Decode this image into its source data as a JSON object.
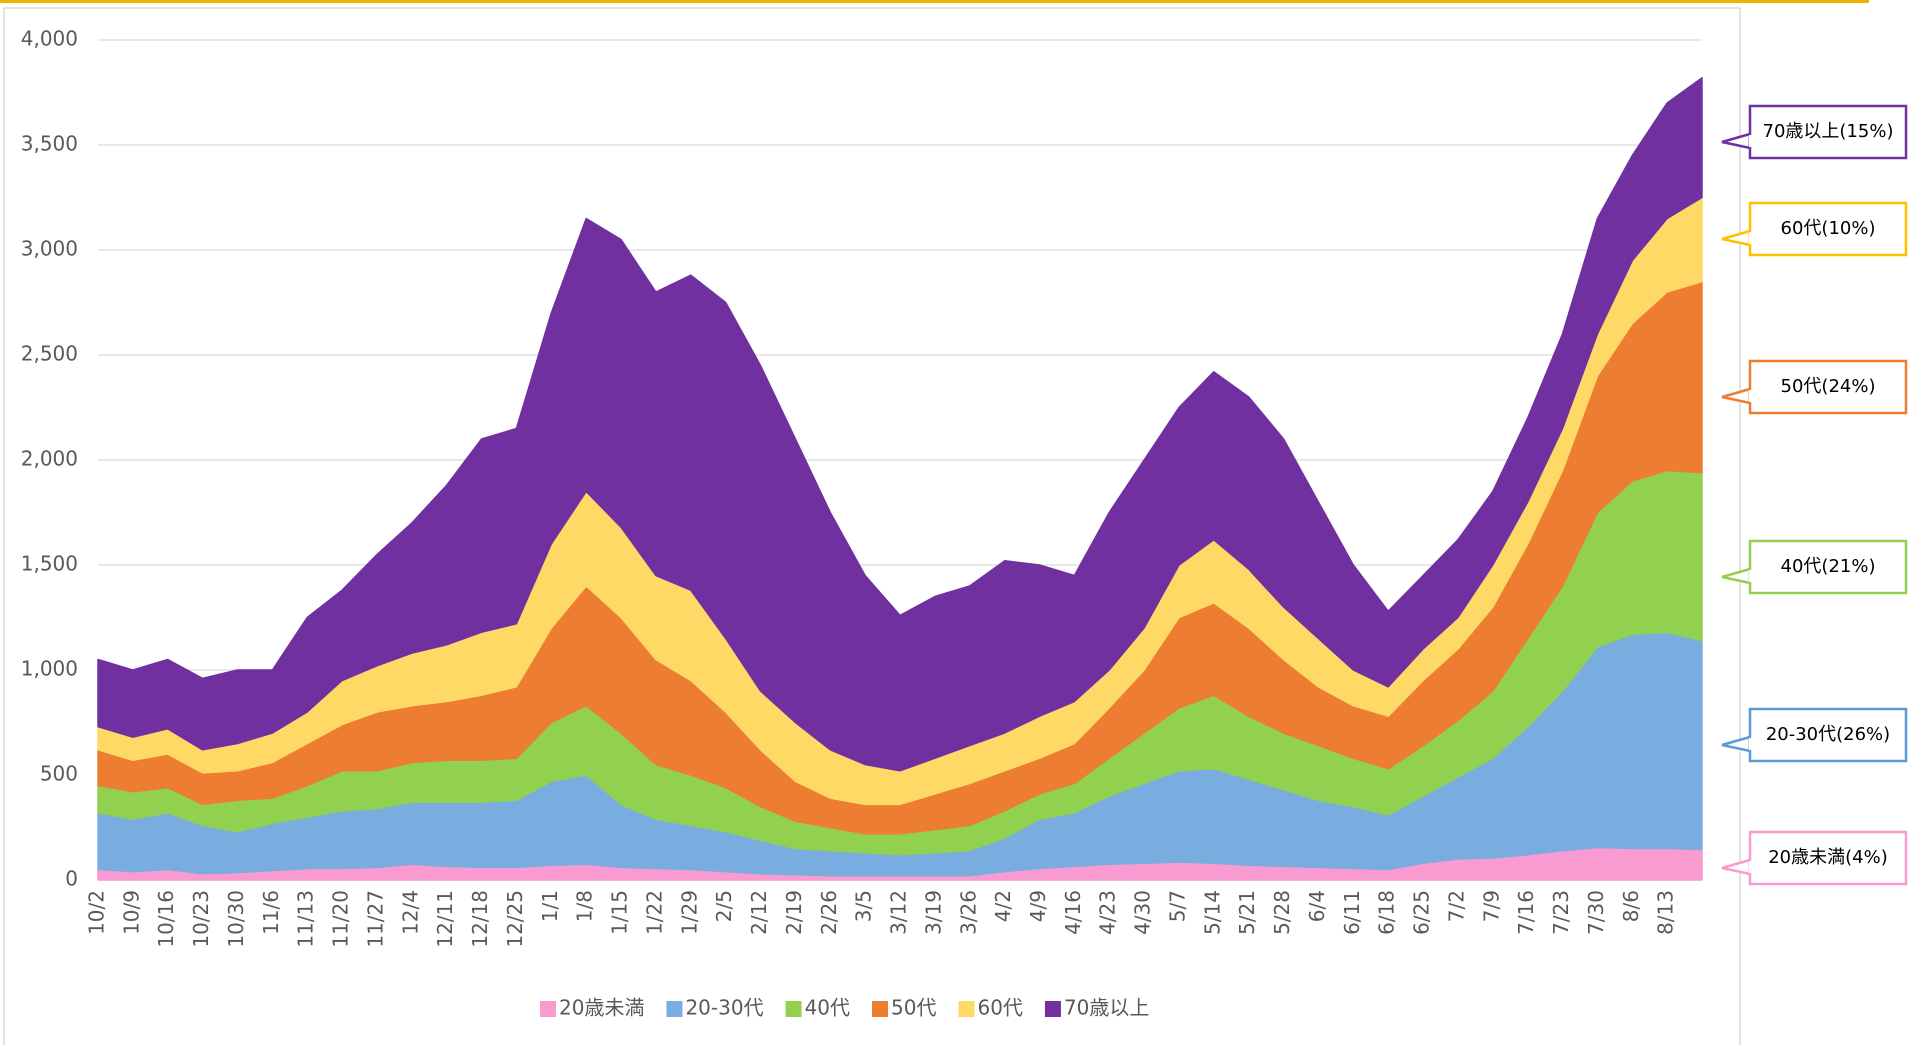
{
  "chart_data": {
    "type": "stacked_area",
    "categories": [
      "10/2",
      "10/9",
      "10/16",
      "10/23",
      "10/30",
      "11/6",
      "11/13",
      "11/20",
      "11/27",
      "12/4",
      "12/11",
      "12/18",
      "12/25",
      "1/1",
      "1/8",
      "1/15",
      "1/22",
      "1/29",
      "2/5",
      "2/12",
      "2/19",
      "2/26",
      "3/5",
      "3/12",
      "3/19",
      "3/26",
      "4/2",
      "4/9",
      "4/16",
      "4/23",
      "4/30",
      "5/7",
      "5/14",
      "5/21",
      "5/28",
      "6/4",
      "6/11",
      "6/18",
      "6/25",
      "7/2",
      "7/9",
      "7/16",
      "7/23",
      "7/30",
      "8/6",
      "8/13",
      null
    ],
    "series": [
      {
        "name": "20歳未満",
        "color": "#f99bd0",
        "values": [
          50,
          40,
          50,
          30,
          35,
          45,
          55,
          55,
          60,
          75,
          65,
          60,
          60,
          70,
          75,
          60,
          55,
          50,
          40,
          30,
          25,
          20,
          20,
          20,
          20,
          20,
          40,
          55,
          65,
          75,
          80,
          85,
          80,
          70,
          65,
          60,
          55,
          50,
          80,
          100,
          105,
          120,
          140,
          155,
          150,
          150,
          145
        ]
      },
      {
        "name": "20-30代",
        "color": "#7aaddf",
        "values": [
          270,
          250,
          270,
          230,
          195,
          225,
          245,
          275,
          280,
          295,
          305,
          310,
          320,
          400,
          425,
          300,
          235,
          210,
          190,
          160,
          125,
          120,
          110,
          100,
          110,
          120,
          160,
          235,
          255,
          325,
          380,
          435,
          450,
          410,
          365,
          320,
          295,
          260,
          320,
          390,
          475,
          610,
          760,
          955,
          1020,
          1030,
          995
        ]
      },
      {
        "name": "40代",
        "color": "#92d050",
        "values": [
          130,
          130,
          120,
          100,
          150,
          120,
          150,
          190,
          180,
          190,
          200,
          200,
          200,
          280,
          330,
          340,
          260,
          240,
          210,
          160,
          130,
          110,
          90,
          100,
          110,
          120,
          130,
          120,
          140,
          180,
          240,
          300,
          350,
          300,
          270,
          260,
          230,
          220,
          240,
          270,
          320,
          420,
          500,
          640,
          730,
          770,
          800
        ]
      },
      {
        "name": "50代",
        "color": "#ed7d31",
        "values": [
          170,
          150,
          160,
          150,
          140,
          170,
          200,
          220,
          280,
          270,
          280,
          310,
          340,
          450,
          570,
          550,
          500,
          450,
          360,
          270,
          190,
          140,
          140,
          140,
          170,
          200,
          190,
          170,
          190,
          240,
          300,
          430,
          440,
          420,
          350,
          280,
          250,
          250,
          310,
          340,
          400,
          450,
          550,
          650,
          750,
          850,
          910
        ]
      },
      {
        "name": "60代",
        "color": "#ffd966",
        "values": [
          110,
          110,
          120,
          110,
          130,
          140,
          150,
          210,
          220,
          250,
          270,
          300,
          300,
          400,
          450,
          430,
          400,
          430,
          350,
          280,
          280,
          230,
          190,
          160,
          170,
          180,
          180,
          200,
          200,
          180,
          200,
          250,
          300,
          280,
          250,
          230,
          170,
          140,
          150,
          150,
          200,
          200,
          200,
          200,
          300,
          350,
          400
        ]
      },
      {
        "name": "70歳以上",
        "color": "#7030a0",
        "values": [
          320,
          320,
          330,
          340,
          350,
          300,
          450,
          430,
          530,
          620,
          760,
          920,
          930,
          1100,
          1300,
          1370,
          1350,
          1500,
          1600,
          1550,
          1350,
          1130,
          900,
          740,
          770,
          760,
          820,
          720,
          600,
          750,
          800,
          750,
          800,
          820,
          800,
          650,
          500,
          360,
          350,
          370,
          350,
          400,
          450,
          550,
          500,
          550,
          570
        ]
      }
    ],
    "ylim": [
      0,
      4000
    ],
    "yticks": [
      0,
      500,
      {
        "value": 1000,
        "label": "1,000"
      },
      {
        "value": 1500,
        "label": "1,500"
      },
      {
        "value": 2000,
        "label": "2,000"
      },
      {
        "value": 2500,
        "label": "2,500"
      },
      {
        "value": 3000,
        "label": "3,000"
      },
      {
        "value": 3500,
        "label": "3,500"
      },
      {
        "value": 4000,
        "label": "4,000"
      }
    ],
    "grid": true,
    "legend": "bottom",
    "annotations": [
      {
        "text": "70歳以上(15%)",
        "color": "#7030a0"
      },
      {
        "text": "60代(10%)",
        "color": "#ffc000"
      },
      {
        "text": "50代(24%)",
        "color": "#ed7d31"
      },
      {
        "text": "40代(21%)",
        "color": "#92d050"
      },
      {
        "text": "20-30代(26%)",
        "color": "#5b9bd5"
      },
      {
        "text": "20歳未満(4%)",
        "color": "#f99bd0"
      }
    ]
  }
}
